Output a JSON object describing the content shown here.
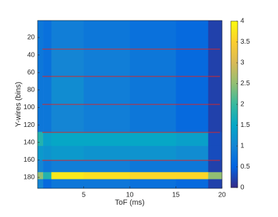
{
  "chart_data": {
    "type": "heatmap",
    "x_label": "ToF (ms)",
    "y_label": "Y-wires (bins)",
    "colormap": "parula",
    "x_edges": [
      0,
      0.6,
      1.5,
      5,
      10,
      15,
      18.5,
      20
    ],
    "y_edges": [
      0.5,
      32,
      64,
      96,
      128,
      144,
      160,
      174,
      182,
      192.5
    ],
    "z": [
      [
        0.8,
        0.7,
        0.9,
        0.8,
        0.7,
        0.6,
        0.2
      ],
      [
        0.8,
        0.7,
        1.0,
        0.9,
        0.8,
        0.6,
        0.2
      ],
      [
        0.8,
        0.8,
        1.1,
        0.9,
        0.8,
        0.6,
        0.2
      ],
      [
        0.8,
        0.8,
        1.0,
        0.9,
        0.8,
        0.6,
        0.2
      ],
      [
        1.8,
        1.4,
        1.5,
        1.5,
        1.5,
        1.4,
        0.3
      ],
      [
        1.3,
        1.2,
        1.3,
        1.2,
        1.2,
        1.1,
        0.3
      ],
      [
        1.0,
        0.8,
        0.9,
        0.9,
        0.8,
        0.8,
        0.2
      ],
      [
        2.5,
        1.8,
        3.8,
        3.7,
        3.6,
        3.6,
        2.5
      ],
      [
        1.0,
        0.6,
        0.8,
        0.8,
        0.7,
        0.6,
        0.2
      ]
    ],
    "xlim": [
      0,
      20
    ],
    "xticks": [
      5,
      10,
      15,
      20
    ],
    "ylim": [
      0.5,
      192.5
    ],
    "yticks": [
      20,
      40,
      60,
      80,
      100,
      120,
      140,
      160,
      180
    ],
    "clim": [
      0,
      4
    ],
    "cticks": [
      0,
      0.5,
      1,
      1.5,
      2,
      2.5,
      3,
      3.5,
      4
    ]
  }
}
